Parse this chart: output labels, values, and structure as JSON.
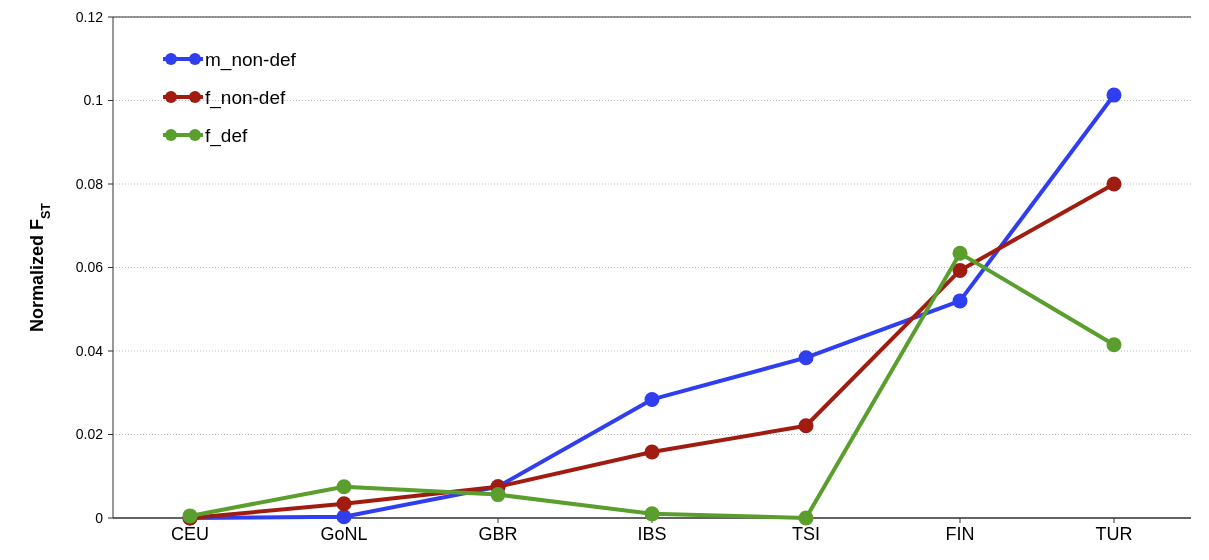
{
  "chart_data": {
    "type": "line",
    "ylabel": "Normalized F$_{ST}$",
    "categories": [
      "CEU",
      "GoNL",
      "GBR",
      "IBS",
      "TSI",
      "FIN",
      "TUR"
    ],
    "series": [
      {
        "name": "m_non-def",
        "color": "#2f3ff0",
        "values": [
          0,
          0.0003,
          0.0075,
          0.0284,
          0.0384,
          0.052,
          0.1013
        ]
      },
      {
        "name": "f_non-def",
        "color": "#a01c10",
        "values": [
          0,
          0.0034,
          0.0075,
          0.0158,
          0.0221,
          0.0593,
          0.08
        ]
      },
      {
        "name": "f_def",
        "color": "#5a9e2e",
        "values": [
          0.0005,
          0.0075,
          0.0056,
          0.001,
          0,
          0.0634,
          0.0415
        ]
      }
    ],
    "ylim": [
      0,
      0.12
    ],
    "yticks": [
      0,
      0.02,
      0.04,
      0.06,
      0.08,
      {
        "value": 0.1,
        "label": "0.1"
      },
      0.12
    ],
    "grid": "y",
    "legend": "top left",
    "marker": "circle",
    "line_style": "solid"
  }
}
